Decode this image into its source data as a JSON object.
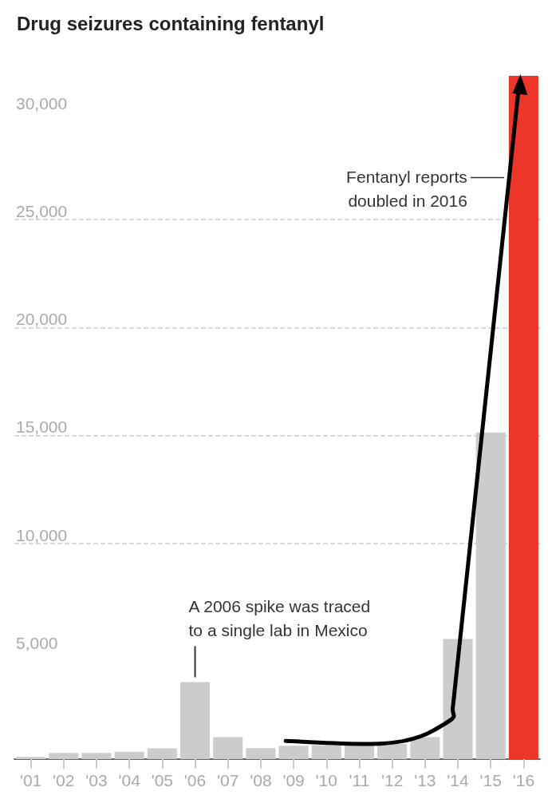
{
  "chart_data": {
    "type": "bar",
    "title": "Drug seizures containing fentanyl",
    "categories": [
      "'01",
      "'02",
      "'03",
      "'04",
      "'05",
      "'06",
      "'07",
      "'08",
      "'09",
      "'10",
      "'11",
      "'12",
      "'13",
      "'14",
      "'15",
      "'16"
    ],
    "values": [
      100,
      290,
      290,
      340,
      500,
      3570,
      1020,
      510,
      620,
      650,
      650,
      700,
      1020,
      5570,
      15140,
      31660
    ],
    "colors": [
      "#cccccc",
      "#cccccc",
      "#cccccc",
      "#cccccc",
      "#cccccc",
      "#cccccc",
      "#cccccc",
      "#cccccc",
      "#cccccc",
      "#cccccc",
      "#cccccc",
      "#cccccc",
      "#cccccc",
      "#cccccc",
      "#cccccc",
      "#ee3529"
    ],
    "ylim": [
      0,
      31700
    ],
    "yticks": [
      {
        "value": 5000,
        "label": "5,000"
      },
      {
        "value": 10000,
        "label": "10,000"
      },
      {
        "value": 15000,
        "label": "15,000"
      },
      {
        "value": 20000,
        "label": "20,000"
      },
      {
        "value": 25000,
        "label": "25,000"
      },
      {
        "value": 30000,
        "label": "30,000"
      }
    ],
    "grid": "y",
    "annotations": [
      {
        "text": "A 2006 spike was traced\nto a single lab in Mexico",
        "x": "'06",
        "y": 3570
      },
      "Fentanyl reports\ndoubled in 2016"
    ]
  }
}
